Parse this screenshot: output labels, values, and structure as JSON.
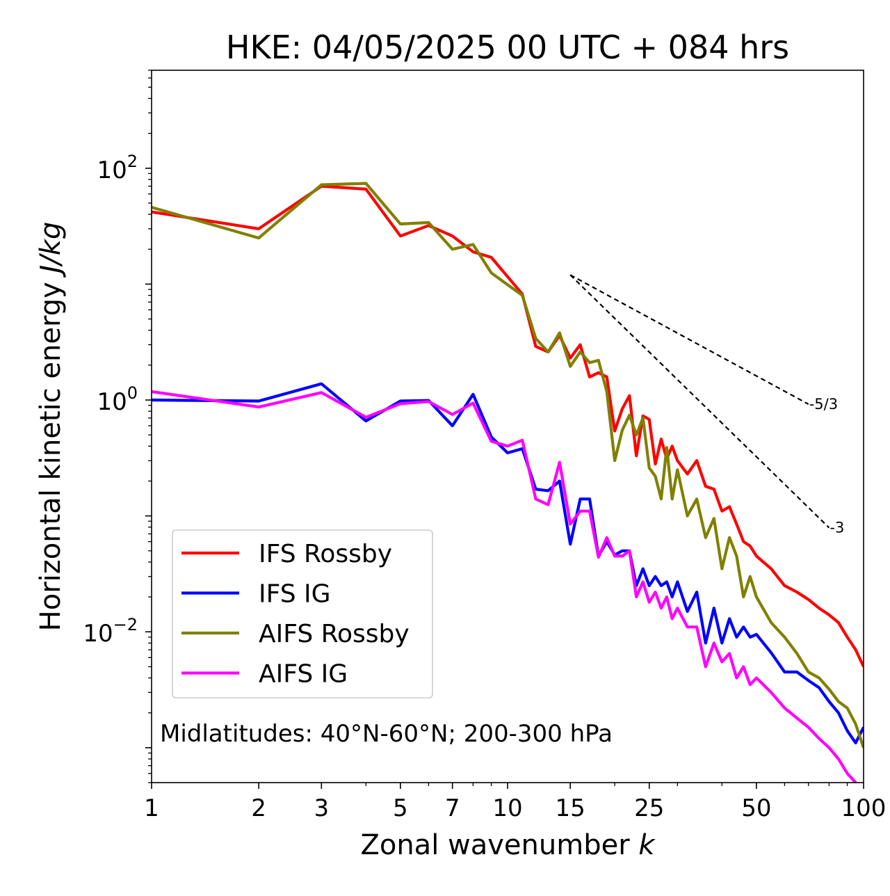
{
  "chart_data": {
    "type": "line",
    "title": "HKE: 04/05/2025 00 UTC + 084 hrs",
    "xlabel": "Zonal wavenumber",
    "xlabel_var": "k",
    "ylabel": "Horizontal kinetic energy",
    "ylabel_unit": "J/kg",
    "xscale": "log",
    "yscale": "log",
    "xlim": [
      1,
      100
    ],
    "ylim": [
      0.0005,
      700
    ],
    "xticks": [
      1,
      2,
      3,
      5,
      7,
      10,
      15,
      25,
      50,
      100
    ],
    "xtick_labels": [
      "1",
      "2",
      "3",
      "5",
      "7",
      "10",
      "15",
      "25",
      "50",
      "100"
    ],
    "yticks": [
      {
        "value": 100,
        "base": "10",
        "exp": "2"
      },
      {
        "value": 1,
        "base": "10",
        "exp": "0"
      },
      {
        "value": 0.01,
        "base": "10",
        "exp": "−2"
      }
    ],
    "grid": false,
    "legend_position": "lower-left",
    "annotation": "Midlatitudes: 40°N-60°N; 200-300 hPa",
    "reference_lines": [
      {
        "label": "-5/3",
        "slope": -1.6667,
        "x0": 15,
        "y0": 12,
        "x1": 70
      },
      {
        "label": "-3",
        "slope": -3,
        "x0": 15,
        "y0": 12,
        "x1": 80
      }
    ],
    "series": [
      {
        "name": "IFS Rossby",
        "color": "#ff0000",
        "x": [
          1,
          2,
          3,
          4,
          5,
          6,
          7,
          8,
          9,
          11,
          12,
          13,
          14,
          15,
          16,
          17,
          18,
          19,
          20,
          21,
          22,
          23,
          24,
          25,
          26,
          27,
          28,
          29,
          30,
          32,
          34,
          36,
          38,
          40,
          42,
          44,
          46,
          48,
          50,
          55,
          60,
          65,
          70,
          75,
          80,
          85,
          90,
          95,
          100
        ],
        "y": [
          42,
          30,
          70,
          66,
          26,
          32,
          26,
          19,
          17,
          8.2,
          2.9,
          2.6,
          3.6,
          2.3,
          3.0,
          1.58,
          1.72,
          1.58,
          0.54,
          0.84,
          1.09,
          0.33,
          0.73,
          0.68,
          0.28,
          0.46,
          0.31,
          0.4,
          0.3,
          0.23,
          0.3,
          0.18,
          0.17,
          0.11,
          0.12,
          0.085,
          0.06,
          0.055,
          0.045,
          0.035,
          0.025,
          0.022,
          0.019,
          0.016,
          0.014,
          0.012,
          0.009,
          0.007,
          0.005
        ]
      },
      {
        "name": "IFS IG",
        "color": "#0000ff",
        "x": [
          1,
          2,
          3,
          4,
          5,
          6,
          7,
          8,
          9,
          10,
          11,
          12,
          13,
          14,
          15,
          16,
          17,
          18,
          19,
          20,
          21,
          22,
          23,
          24,
          25,
          26,
          27,
          28,
          29,
          30,
          32,
          34,
          36,
          38,
          40,
          42,
          44,
          46,
          48,
          50,
          55,
          60,
          65,
          70,
          75,
          80,
          85,
          90,
          95,
          100
        ],
        "y": [
          1.0,
          0.98,
          1.38,
          0.66,
          0.98,
          0.99,
          0.6,
          1.12,
          0.48,
          0.35,
          0.38,
          0.17,
          0.165,
          0.2,
          0.057,
          0.14,
          0.14,
          0.045,
          0.06,
          0.046,
          0.05,
          0.05,
          0.025,
          0.035,
          0.025,
          0.03,
          0.025,
          0.027,
          0.02,
          0.027,
          0.015,
          0.022,
          0.008,
          0.016,
          0.008,
          0.013,
          0.009,
          0.011,
          0.009,
          0.0095,
          0.0066,
          0.0045,
          0.0045,
          0.0038,
          0.0033,
          0.0025,
          0.002,
          0.0014,
          0.0011,
          0.0015
        ]
      },
      {
        "name": "AIFS Rossby",
        "color": "#808000",
        "x": [
          1,
          2,
          3,
          4,
          5,
          6,
          7,
          8,
          9,
          11,
          12,
          13,
          14,
          15,
          16,
          17,
          18,
          19,
          20,
          21,
          22,
          23,
          24,
          25,
          26,
          27,
          28,
          29,
          30,
          32,
          34,
          36,
          38,
          40,
          42,
          44,
          46,
          48,
          50,
          55,
          60,
          65,
          70,
          75,
          80,
          85,
          90,
          95,
          100
        ],
        "y": [
          46,
          25,
          72,
          74,
          33,
          34,
          20,
          22,
          12.5,
          8.0,
          3.4,
          2.6,
          3.8,
          1.95,
          2.6,
          2.1,
          2.2,
          1.18,
          0.3,
          0.55,
          0.74,
          0.5,
          0.7,
          0.26,
          0.22,
          0.14,
          0.39,
          0.14,
          0.25,
          0.1,
          0.14,
          0.065,
          0.095,
          0.035,
          0.065,
          0.045,
          0.02,
          0.03,
          0.02,
          0.012,
          0.009,
          0.0065,
          0.0045,
          0.004,
          0.0032,
          0.0025,
          0.0022,
          0.0016,
          0.001
        ]
      },
      {
        "name": "AIFS IG",
        "color": "#ff00ff",
        "x": [
          1,
          2,
          3,
          4,
          5,
          6,
          7,
          8,
          9,
          10,
          11,
          12,
          13,
          14,
          15,
          16,
          17,
          18,
          19,
          20,
          21,
          22,
          23,
          24,
          25,
          26,
          27,
          28,
          29,
          30,
          32,
          34,
          36,
          38,
          40,
          42,
          44,
          46,
          48,
          50,
          55,
          60,
          65,
          70,
          75,
          80,
          85,
          90,
          95,
          100
        ],
        "y": [
          1.18,
          0.87,
          1.16,
          0.71,
          0.93,
          0.97,
          0.75,
          0.94,
          0.44,
          0.4,
          0.45,
          0.14,
          0.125,
          0.29,
          0.085,
          0.11,
          0.11,
          0.044,
          0.065,
          0.045,
          0.045,
          0.05,
          0.02,
          0.027,
          0.018,
          0.022,
          0.016,
          0.02,
          0.013,
          0.016,
          0.011,
          0.011,
          0.005,
          0.008,
          0.0055,
          0.0065,
          0.004,
          0.005,
          0.0035,
          0.004,
          0.003,
          0.0022,
          0.0018,
          0.0015,
          0.0012,
          0.001,
          0.0008,
          0.0006,
          0.0005,
          0.0004
        ]
      }
    ]
  }
}
